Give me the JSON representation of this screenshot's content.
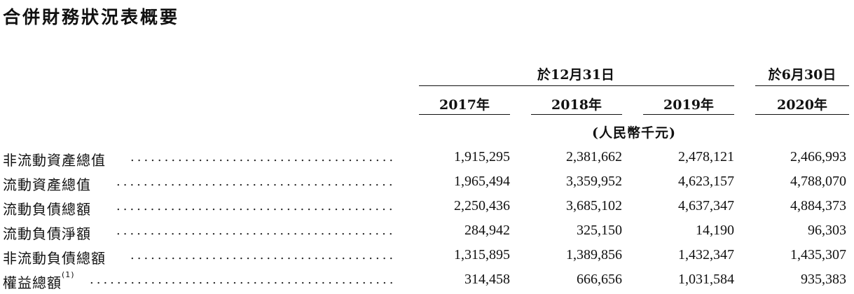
{
  "title": "合併財務狀況表概要",
  "header": {
    "group1": "於12月31日",
    "group2": "於6月30日",
    "years": [
      "2017年",
      "2018年",
      "2019年",
      "2020年"
    ],
    "unit": "(人民幣千元)"
  },
  "rows": [
    {
      "label": "非流動資產總值",
      "note": "",
      "values": [
        "1,915,295",
        "2,381,662",
        "2,478,121",
        "2,466,993"
      ]
    },
    {
      "label": "流動資產總值",
      "note": "",
      "values": [
        "1,965,494",
        "3,359,952",
        "4,623,157",
        "4,788,070"
      ]
    },
    {
      "label": "流動負債總額",
      "note": "",
      "values": [
        "2,250,436",
        "3,685,102",
        "4,637,347",
        "4,884,373"
      ]
    },
    {
      "label": "流動負債淨額",
      "note": "",
      "values": [
        "284,942",
        "325,150",
        "14,190",
        "96,303"
      ]
    },
    {
      "label": "非流動負債總額",
      "note": "",
      "values": [
        "1,315,895",
        "1,389,856",
        "1,432,347",
        "1,435,307"
      ]
    },
    {
      "label": "權益總額",
      "note": "(1)",
      "values": [
        "314,458",
        "666,656",
        "1,031,584",
        "935,383"
      ]
    }
  ]
}
